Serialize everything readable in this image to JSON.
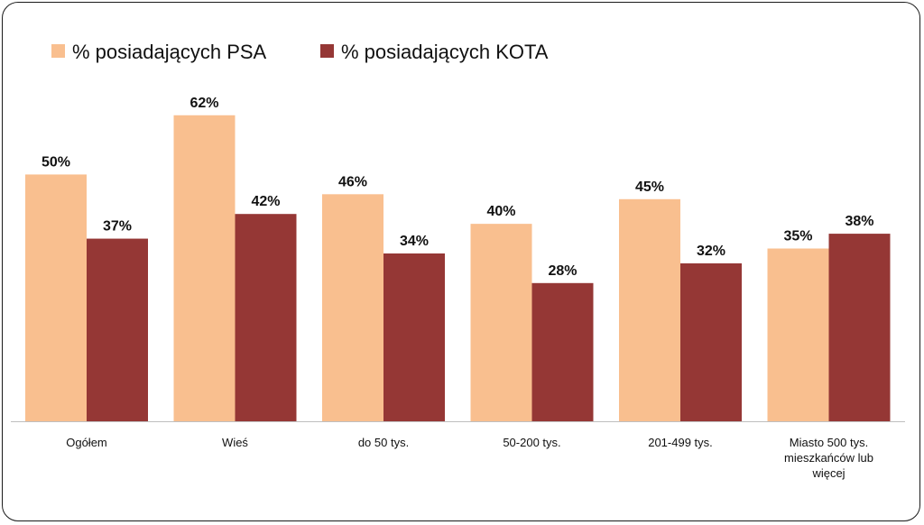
{
  "chart_data": {
    "type": "bar",
    "categories": [
      [
        "Ogółem"
      ],
      [
        "Wieś"
      ],
      [
        "do 50 tys."
      ],
      [
        "50-200 tys."
      ],
      [
        "201-499 tys."
      ],
      [
        "Miasto 500 tys.",
        "mieszkańców lub",
        "więcej"
      ]
    ],
    "series": [
      {
        "name": "% posiadających PSA",
        "color": "#F9BF8F",
        "values": [
          50,
          62,
          46,
          40,
          45,
          35
        ]
      },
      {
        "name": "% posiadających KOTA",
        "color": "#953735",
        "values": [
          37,
          42,
          34,
          28,
          32,
          38
        ]
      }
    ],
    "value_suffix": "%",
    "ylim": [
      0,
      70
    ],
    "grid": false,
    "legend_position": "top-left"
  }
}
